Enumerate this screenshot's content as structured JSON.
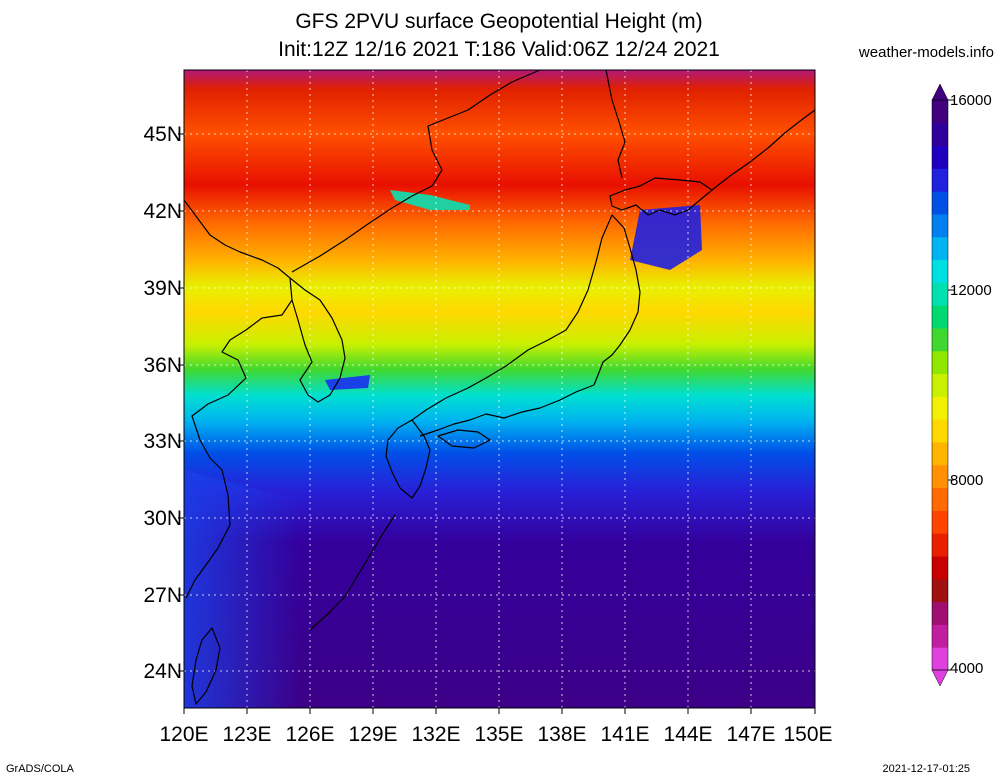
{
  "header": {
    "title_line1": "GFS 2PVU surface Geopotential Height (m)",
    "title_line2": "Init:12Z 12/16 2021 T:186 Valid:06Z 12/24 2021",
    "site": "weather-models.info"
  },
  "axes": {
    "lat_labels": [
      "45N",
      "42N",
      "39N",
      "36N",
      "33N",
      "30N",
      "27N",
      "24N"
    ],
    "lon_labels": [
      "120E",
      "123E",
      "126E",
      "129E",
      "132E",
      "135E",
      "138E",
      "141E",
      "144E",
      "147E",
      "150E"
    ]
  },
  "colorbar": {
    "labels": [
      "16000",
      "12000",
      "8000",
      "4000"
    ],
    "colors": [
      "#e040e0",
      "#c020a0",
      "#a01070",
      "#a01010",
      "#c80000",
      "#e82000",
      "#ff4400",
      "#ff6a00",
      "#ff9000",
      "#ffb400",
      "#ffd800",
      "#f0f000",
      "#c8f000",
      "#90e800",
      "#40d830",
      "#00d870",
      "#00e0b0",
      "#00e0e0",
      "#00b4f0",
      "#0080f0",
      "#0050e8",
      "#2020e0",
      "#2000c0",
      "#30009a",
      "#400080"
    ]
  },
  "footer": {
    "left": "GrADS/COLA",
    "right": "2021-12-17-01:25"
  }
}
